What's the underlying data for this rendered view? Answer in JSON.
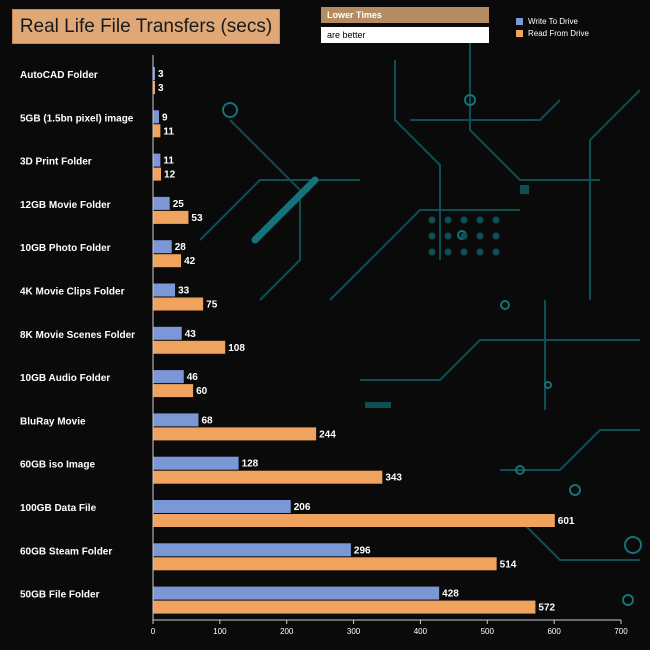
{
  "title": "Real Life File Transfers (secs)",
  "subtitle_line1": "Lower Times",
  "subtitle_line2": "are better",
  "legend": {
    "write_label": "Write To  Drive",
    "read_label": "Read From  Drive"
  },
  "colors": {
    "write": "#7b97d6",
    "read": "#f0a35e",
    "title_bg": "#e0a877",
    "circuit": "#0e4f54",
    "background": "#0a0a0a"
  },
  "chart_data": {
    "type": "bar",
    "orientation": "horizontal",
    "categories": [
      "AutoCAD Folder",
      "5GB (1.5bn pixel) image",
      "3D Print Folder",
      "12GB Movie Folder",
      "10GB Photo Folder",
      "4K Movie Clips Folder",
      "8K Movie Scenes Folder",
      "10GB Audio Folder",
      "BluRay Movie",
      "60GB iso Image",
      "100GB Data File",
      "60GB Steam Folder",
      "50GB File Folder"
    ],
    "series": [
      {
        "name": "Write To  Drive",
        "values": [
          3,
          9,
          11,
          25,
          28,
          33,
          43,
          46,
          68,
          128,
          206,
          296,
          428
        ]
      },
      {
        "name": "Read From  Drive",
        "values": [
          3,
          11,
          12,
          53,
          42,
          75,
          108,
          60,
          244,
          343,
          601,
          514,
          572
        ]
      }
    ],
    "xlim": [
      0,
      700
    ],
    "xticks": [
      0,
      100,
      200,
      300,
      400,
      500,
      600,
      700
    ],
    "title": "Real Life File Transfers (secs)",
    "legend_position": "top-right",
    "grid": false
  }
}
